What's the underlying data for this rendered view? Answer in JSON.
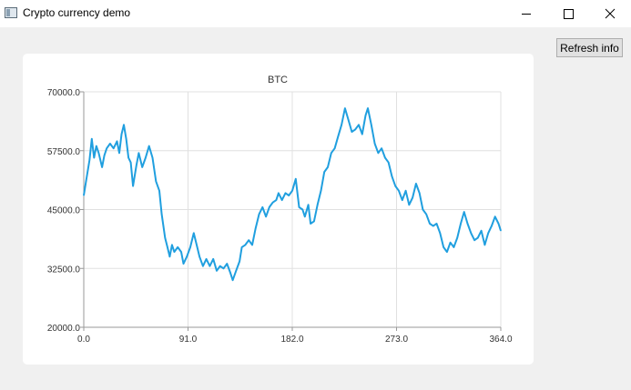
{
  "window": {
    "title": "Crypto currency demo",
    "icon": "app-window-icon",
    "controls": [
      "minimize-icon",
      "maximize-icon",
      "close-icon"
    ]
  },
  "toolbar": {
    "refresh_label": "Refresh info"
  },
  "colors": {
    "series": "#209fdf",
    "grid": "#e0e0e0",
    "axis": "#cfcfcf",
    "card": "#ffffff",
    "background": "#f0f0f0"
  },
  "chart_data": {
    "type": "line",
    "title": "BTC",
    "xlabel": "",
    "ylabel": "",
    "xlim": [
      0,
      364
    ],
    "ylim": [
      20000,
      70000
    ],
    "x_ticks": [
      "0.0",
      "91.0",
      "182.0",
      "273.0",
      "364.0"
    ],
    "y_ticks": [
      "20000.0",
      "32500.0",
      "45000.0",
      "57500.0",
      "70000.0"
    ],
    "grid": true,
    "legend": "none",
    "series": [
      {
        "points": [
          [
            0,
            48000
          ],
          [
            2,
            51000
          ],
          [
            5,
            55500
          ],
          [
            7,
            60000
          ],
          [
            9,
            56000
          ],
          [
            11,
            58500
          ],
          [
            13,
            57000
          ],
          [
            16,
            54000
          ],
          [
            18,
            56500
          ],
          [
            20,
            58000
          ],
          [
            23,
            59000
          ],
          [
            26,
            58000
          ],
          [
            29,
            59500
          ],
          [
            31,
            57000
          ],
          [
            33,
            61000
          ],
          [
            35,
            63000
          ],
          [
            37,
            60000
          ],
          [
            39,
            56000
          ],
          [
            41,
            55000
          ],
          [
            43,
            50000
          ],
          [
            46,
            54500
          ],
          [
            48,
            57000
          ],
          [
            51,
            54000
          ],
          [
            54,
            56000
          ],
          [
            57,
            58500
          ],
          [
            60,
            56000
          ],
          [
            63,
            51000
          ],
          [
            66,
            49000
          ],
          [
            68,
            44000
          ],
          [
            71,
            39000
          ],
          [
            73,
            37000
          ],
          [
            75,
            35000
          ],
          [
            77,
            37500
          ],
          [
            79,
            36000
          ],
          [
            82,
            37000
          ],
          [
            85,
            36000
          ],
          [
            87,
            33500
          ],
          [
            90,
            35000
          ],
          [
            93,
            37000
          ],
          [
            96,
            40000
          ],
          [
            99,
            37000
          ],
          [
            101,
            35000
          ],
          [
            104,
            33000
          ],
          [
            107,
            34500
          ],
          [
            110,
            33000
          ],
          [
            113,
            34500
          ],
          [
            116,
            32000
          ],
          [
            119,
            33000
          ],
          [
            122,
            32500
          ],
          [
            125,
            33500
          ],
          [
            128,
            31500
          ],
          [
            130,
            30000
          ],
          [
            133,
            32000
          ],
          [
            136,
            34000
          ],
          [
            138,
            37000
          ],
          [
            141,
            37500
          ],
          [
            144,
            38500
          ],
          [
            147,
            37500
          ],
          [
            150,
            41000
          ],
          [
            153,
            44000
          ],
          [
            156,
            45500
          ],
          [
            159,
            43500
          ],
          [
            162,
            45500
          ],
          [
            165,
            46500
          ],
          [
            168,
            47000
          ],
          [
            170,
            48500
          ],
          [
            173,
            47000
          ],
          [
            176,
            48500
          ],
          [
            179,
            48000
          ],
          [
            182,
            49000
          ],
          [
            185,
            51500
          ],
          [
            188,
            45500
          ],
          [
            191,
            45000
          ],
          [
            193,
            43500
          ],
          [
            196,
            46000
          ],
          [
            198,
            42000
          ],
          [
            201,
            42500
          ],
          [
            204,
            46000
          ],
          [
            207,
            49000
          ],
          [
            210,
            53000
          ],
          [
            213,
            54000
          ],
          [
            216,
            57000
          ],
          [
            219,
            58000
          ],
          [
            222,
            60500
          ],
          [
            225,
            63000
          ],
          [
            228,
            66500
          ],
          [
            231,
            64000
          ],
          [
            234,
            61500
          ],
          [
            237,
            62000
          ],
          [
            240,
            63000
          ],
          [
            243,
            61000
          ],
          [
            246,
            65000
          ],
          [
            248,
            66500
          ],
          [
            251,
            63000
          ],
          [
            254,
            59000
          ],
          [
            257,
            57000
          ],
          [
            260,
            58000
          ],
          [
            263,
            56000
          ],
          [
            266,
            55000
          ],
          [
            269,
            52000
          ],
          [
            272,
            50000
          ],
          [
            275,
            49000
          ],
          [
            278,
            47000
          ],
          [
            281,
            49000
          ],
          [
            284,
            46000
          ],
          [
            287,
            47500
          ],
          [
            290,
            50500
          ],
          [
            293,
            48500
          ],
          [
            296,
            45000
          ],
          [
            299,
            44000
          ],
          [
            302,
            42000
          ],
          [
            305,
            41500
          ],
          [
            308,
            42000
          ],
          [
            311,
            40000
          ],
          [
            314,
            37000
          ],
          [
            317,
            36000
          ],
          [
            320,
            38000
          ],
          [
            323,
            37000
          ],
          [
            326,
            39000
          ],
          [
            329,
            42000
          ],
          [
            332,
            44500
          ],
          [
            335,
            42000
          ],
          [
            338,
            40000
          ],
          [
            341,
            38500
          ],
          [
            344,
            39000
          ],
          [
            347,
            40500
          ],
          [
            350,
            37500
          ],
          [
            353,
            40000
          ],
          [
            356,
            41500
          ],
          [
            359,
            43500
          ],
          [
            362,
            42000
          ],
          [
            364,
            40500
          ]
        ]
      }
    ]
  }
}
